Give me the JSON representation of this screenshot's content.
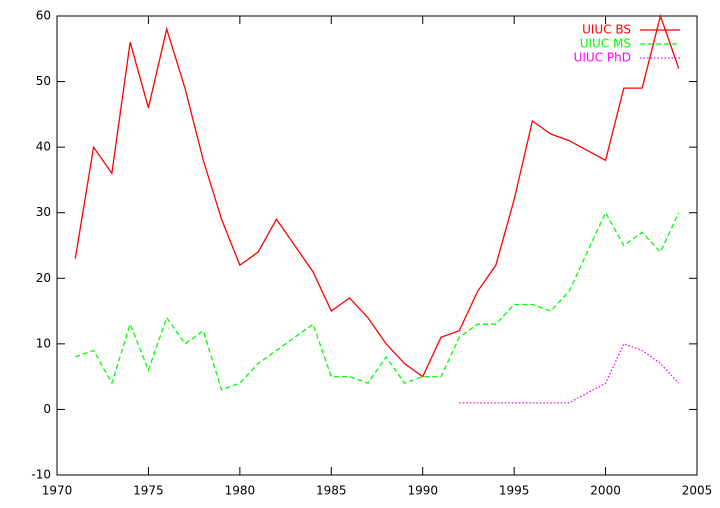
{
  "chart_data": {
    "type": "line",
    "x": [
      1971,
      1972,
      1973,
      1974,
      1975,
      1976,
      1977,
      1978,
      1979,
      1980,
      1981,
      1982,
      1983,
      1984,
      1985,
      1986,
      1987,
      1988,
      1989,
      1990,
      1991,
      1992,
      1993,
      1994,
      1995,
      1996,
      1997,
      1998,
      1999,
      2000,
      2001,
      2002,
      2003,
      2004
    ],
    "series": [
      {
        "name": "UIUC BS",
        "color": "#ff0000",
        "style": "solid",
        "values": [
          23,
          40,
          36,
          56,
          46,
          58,
          49,
          38,
          29,
          22,
          24,
          29,
          25,
          21,
          15,
          17,
          14,
          10,
          7,
          5,
          11,
          12,
          18,
          22,
          32,
          44,
          42,
          41,
          39.5,
          38,
          49,
          49,
          60,
          52
        ]
      },
      {
        "name": "UIUC MS",
        "color": "#00ff00",
        "style": "dashed",
        "values": [
          8,
          9,
          4,
          13,
          6,
          14,
          10,
          12,
          3,
          4,
          7,
          9,
          11,
          13,
          5,
          5,
          4,
          8,
          4,
          5,
          5,
          11,
          13,
          13,
          16,
          16,
          15,
          18,
          24,
          30,
          25,
          27,
          24,
          30
        ]
      },
      {
        "name": "UIUC PhD",
        "color": "#ff00ff",
        "style": "dotted",
        "values": [
          null,
          null,
          null,
          null,
          null,
          null,
          null,
          null,
          null,
          null,
          null,
          null,
          null,
          null,
          null,
          null,
          null,
          null,
          null,
          null,
          null,
          1,
          1,
          1,
          1,
          1,
          1,
          1,
          2.5,
          4,
          10,
          9,
          7,
          4
        ]
      }
    ],
    "xlim": [
      1970,
      2005
    ],
    "xticks": [
      1970,
      1975,
      1980,
      1985,
      1990,
      1995,
      2000,
      2005
    ],
    "ylim": [
      -10,
      60
    ],
    "yticks": [
      -10,
      0,
      10,
      20,
      30,
      40,
      50,
      60
    ],
    "legend": "top-right"
  }
}
